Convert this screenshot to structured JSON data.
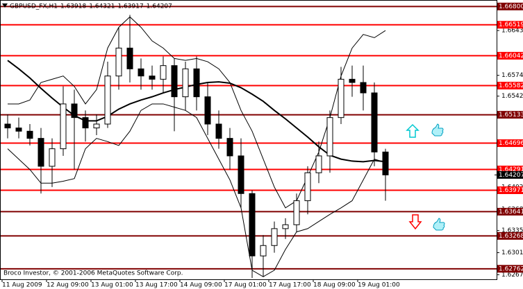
{
  "chart_data": {
    "type": "candlestick",
    "symbol": "GBPUSD_FX,H1",
    "ohlc": [
      1.63918,
      1.64321,
      1.63917,
      1.64207
    ],
    "copyright": "Broco Investor, © 2001-2006 MetaQuotes Software Corp.",
    "categories": [
      "11 Aug 2009",
      null,
      null,
      null,
      "12 Aug 09:00",
      null,
      null,
      null,
      "13 Aug 01:00",
      null,
      null,
      null,
      "13 Aug 17:00",
      null,
      null,
      null,
      "14 Aug 09:00",
      null,
      null,
      null,
      "17 Aug 01:00",
      null,
      null,
      null,
      "17 Aug 17:00",
      null,
      null,
      null,
      "18 Aug 09:00",
      null,
      null,
      null,
      "19 Aug 01:00",
      null,
      null
    ],
    "open": [
      1.6499,
      1.6493,
      1.6488,
      1.6477,
      1.6434,
      1.6461,
      1.653,
      1.6509,
      1.6493,
      1.6499,
      1.6573,
      1.6616,
      1.6584,
      1.6573,
      1.6568,
      1.6589,
      1.6541,
      1.6584,
      1.6541,
      1.6499,
      1.6477,
      1.645,
      1.6392,
      1.6296,
      1.6312,
      1.6338,
      1.6344,
      1.6381,
      1.6424,
      1.645,
      1.6509,
      1.6568,
      1.6563,
      1.6547,
      1.6456
    ],
    "high": [
      1.6514,
      1.6509,
      1.6499,
      1.6493,
      1.6477,
      1.6557,
      1.6552,
      1.652,
      1.6514,
      1.6595,
      1.6648,
      1.6667,
      1.66,
      1.6589,
      1.6603,
      1.66,
      1.6595,
      1.6603,
      1.6563,
      1.652,
      1.6493,
      1.6477,
      1.6397,
      1.6328,
      1.6349,
      1.6354,
      1.6392,
      1.6434,
      1.6472,
      1.652,
      1.6587,
      1.6589,
      1.6589,
      1.6563,
      1.6461
    ],
    "low": [
      1.6477,
      1.6477,
      1.6466,
      1.6392,
      1.6402,
      1.645,
      1.6429,
      1.6472,
      1.6482,
      1.6493,
      1.6552,
      1.6563,
      1.6552,
      1.6552,
      1.6547,
      1.6488,
      1.652,
      1.652,
      1.6482,
      1.6461,
      1.6429,
      1.637,
      1.6262,
      1.6264,
      1.6301,
      1.6322,
      1.6333,
      1.636,
      1.6408,
      1.6424,
      1.6499,
      1.6541,
      1.652,
      1.6434,
      1.6381
    ],
    "close": [
      1.6493,
      1.6488,
      1.6477,
      1.6434,
      1.6461,
      1.653,
      1.6509,
      1.6493,
      1.6499,
      1.6573,
      1.6616,
      1.6584,
      1.6573,
      1.6568,
      1.6589,
      1.6541,
      1.6584,
      1.6541,
      1.6499,
      1.6477,
      1.645,
      1.6392,
      1.6296,
      1.6312,
      1.6338,
      1.6344,
      1.6381,
      1.6424,
      1.645,
      1.6509,
      1.6568,
      1.6563,
      1.6547,
      1.6456,
      1.64207
    ],
    "ma": {
      "color": "#000000",
      "values": [
        1.6597,
        1.6584,
        1.657,
        1.6554,
        1.6539,
        1.6525,
        1.6512,
        1.6504,
        1.6504,
        1.6511,
        1.6522,
        1.653,
        1.6536,
        1.6541,
        1.6547,
        1.6552,
        1.6556,
        1.656,
        1.6563,
        1.6564,
        1.6562,
        1.6555,
        1.6545,
        1.6534,
        1.652,
        1.6507,
        1.6493,
        1.6479,
        1.6464,
        1.6451,
        1.6445,
        1.6442,
        1.6441,
        1.6443,
        1.6441
      ]
    },
    "bands": [
      {
        "color": "#000000",
        "values": [
          1.653,
          1.653,
          1.6536,
          1.6563,
          1.6568,
          1.6573,
          1.6557,
          1.653,
          1.6552,
          1.6616,
          1.6648,
          1.6664,
          1.6648,
          1.6627,
          1.6616,
          1.66,
          1.6597,
          1.66,
          1.6595,
          1.6584,
          1.6563,
          1.652,
          1.6488,
          1.6445,
          1.6402,
          1.637,
          1.6381,
          1.6418,
          1.6456,
          1.6509,
          1.6573,
          1.6616,
          1.6637,
          1.6632,
          1.6643
        ]
      },
      {
        "color": "#000000",
        "values": [
          1.6461,
          1.6445,
          1.6429,
          1.6408,
          1.6408,
          1.6411,
          1.6415,
          1.6461,
          1.6477,
          1.6472,
          1.6466,
          1.6488,
          1.652,
          1.653,
          1.653,
          1.6525,
          1.652,
          1.6509,
          1.6477,
          1.6445,
          1.6413,
          1.637,
          1.6274,
          1.6264,
          1.6274,
          1.6306,
          1.6333,
          1.6338,
          1.6349,
          1.636,
          1.637,
          1.6381,
          1.6413,
          1.6445,
          1.644
        ]
      }
    ],
    "levels": [
      {
        "value": 1.668,
        "label": "1.66800",
        "color": "#800000"
      },
      {
        "value": 1.66519,
        "color": "#ff0000"
      },
      {
        "value": 1.66042,
        "color": "#ff0000"
      },
      {
        "value": 1.65582,
        "color": "#ff0000"
      },
      {
        "value": 1.65133,
        "color": "#800000"
      },
      {
        "value": 1.64696,
        "color": "#ff0000"
      },
      {
        "value": 1.64291,
        "color": "#ff0000"
      },
      {
        "value": 1.63971,
        "color": "#ff0000"
      },
      {
        "value": 1.63641,
        "color": "#800000"
      },
      {
        "value": 1.63268,
        "color": "#800000"
      },
      {
        "value": 1.62762,
        "color": "#800000"
      }
    ],
    "ylim": [
      1.626,
      1.669
    ],
    "yticks": [
      {
        "value": 1.6677,
        "label": "1.66770"
      },
      {
        "value": 1.6643,
        "label": "1.66430"
      },
      {
        "value": 1.6574,
        "label": "1.65740"
      },
      {
        "value": 1.6542,
        "label": "1.65420"
      },
      {
        "value": 1.6402,
        "label": "1.64020"
      },
      {
        "value": 1.6368,
        "label": "1.63680"
      },
      {
        "value": 1.6335,
        "label": "1.63350"
      },
      {
        "value": 1.6301,
        "label": "1.63010"
      },
      {
        "value": 1.6267,
        "label": "1.62670"
      }
    ],
    "bull_color": "#ffffff",
    "bear_color": "#000000"
  }
}
